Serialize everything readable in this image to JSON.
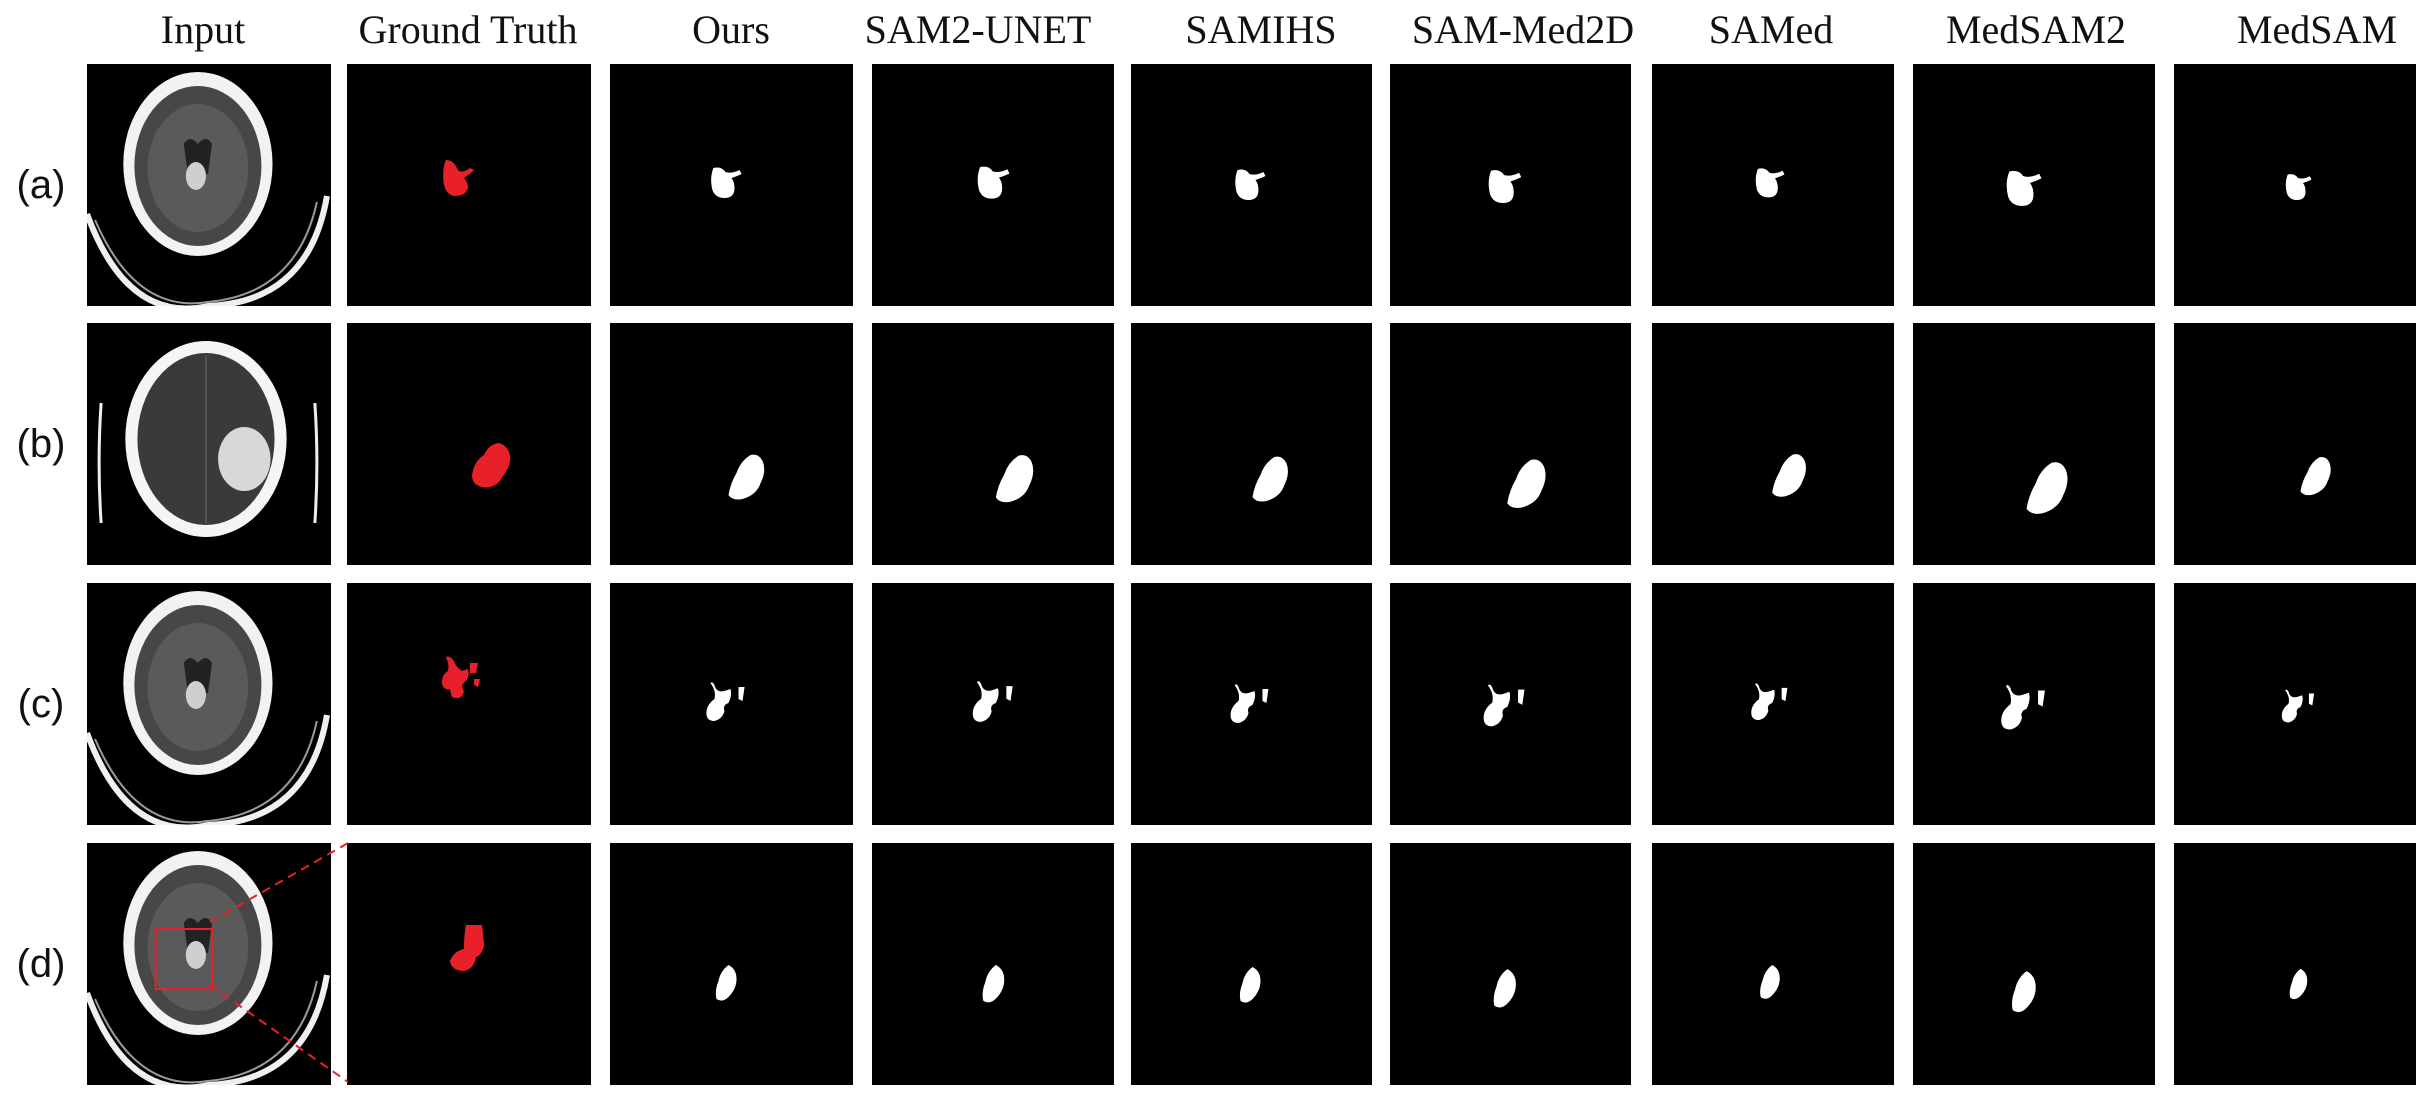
{
  "figure": {
    "columns": [
      "Input",
      "Ground Truth",
      "Ours",
      "SAM2-UNET",
      "SAMIHS",
      "SAM-Med2D",
      "SAMed",
      "MedSAM2",
      "MedSAM"
    ],
    "rows": [
      "(a)",
      "(b)",
      "(c)",
      "(d)"
    ]
  },
  "colors": {
    "background": "#ffffff",
    "panel": "#000000",
    "ground_truth_mask": "#e8202a",
    "predicted_mask": "#ffffff",
    "zoom_box": "#e8202a"
  },
  "icons": {
    "ct": "axial-ct-brain-slice",
    "mask": "segmentation-mask"
  }
}
